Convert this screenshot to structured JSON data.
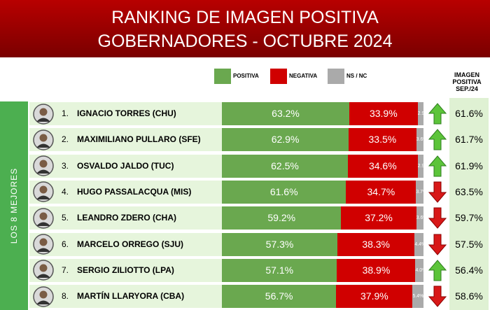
{
  "chart_data": {
    "type": "bar",
    "title": "RANKING DE IMAGEN POSITIVA",
    "subtitle": "GOBERNADORES - OCTUBRE 2024",
    "group_label": "LOS 8 MEJORES",
    "ranks": [
      "1.",
      "2.",
      "3.",
      "4.",
      "5.",
      "6.",
      "7.",
      "8."
    ],
    "categories": [
      "IGNACIO TORRES (CHU)",
      "MAXIMILIANO PULLARO (SFE)",
      "OSVALDO JALDO (TUC)",
      "HUGO PASSALACQUA (MIS)",
      "LEANDRO ZDERO (CHA)",
      "MARCELO ORREGO (SJU)",
      "SERGIO ZILIOTTO (LPA)",
      "MARTÍN LLARYORA (CBA)"
    ],
    "xlim": [
      0,
      100
    ],
    "series": [
      {
        "name": "POSITIVA",
        "color": "#6aa84f",
        "values": [
          63.2,
          62.9,
          62.5,
          61.6,
          59.2,
          57.3,
          57.1,
          56.7
        ],
        "value_labels": [
          "63.2%",
          "62.9%",
          "62.5%",
          "61.6%",
          "59.2%",
          "57.3%",
          "57.1%",
          "56.7%"
        ]
      },
      {
        "name": "NEGATIVA",
        "color": "#d00000",
        "values": [
          33.9,
          33.5,
          34.6,
          34.7,
          37.2,
          38.3,
          38.9,
          37.9
        ],
        "value_labels": [
          "33.9%",
          "33.5%",
          "34.6%",
          "34.7%",
          "37.2%",
          "38.3%",
          "38.9%",
          "37.9%"
        ]
      },
      {
        "name": "NS / NC",
        "color": "#aaaaaa",
        "values": [
          2.9,
          3.6,
          2.9,
          3.7,
          3.6,
          4.4,
          4.0,
          5.4
        ],
        "value_labels": [
          "2.9%",
          "3.6%",
          "2.9%",
          "3.7%",
          "3.6%",
          "4.4%",
          "4.0%",
          "5.4%"
        ]
      }
    ],
    "previous": {
      "name": "IMAGEN POSITIVA SEP./24",
      "values": [
        61.6,
        61.7,
        61.9,
        63.5,
        59.7,
        57.5,
        56.4,
        58.6
      ],
      "value_labels": [
        "61.6%",
        "61.7%",
        "61.9%",
        "63.5%",
        "59.7%",
        "57.5%",
        "56.4%",
        "58.6%"
      ]
    }
  }
}
